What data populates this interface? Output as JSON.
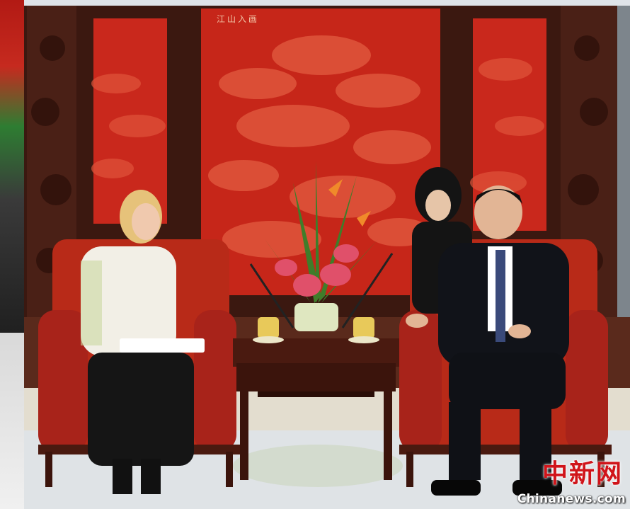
{
  "image": {
    "scene": "formal meeting in reception hall",
    "watermark": {
      "brand_cn": "中新网",
      "brand_en": "Chinanews.com",
      "color_cn": "#d0141a",
      "color_en": "#ffffff"
    },
    "screen_inscription": "江山入画",
    "colors": {
      "lacquer_red": "#c9281c",
      "wood_dark": "#3b1810",
      "chair_red": "#b82a18",
      "carpet": "#dfe3e6"
    }
  }
}
